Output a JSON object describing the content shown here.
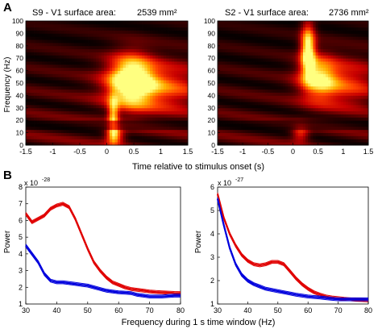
{
  "panel_labels": [
    "A",
    "B"
  ],
  "chart_data": [
    {
      "type": "heatmap",
      "title": "S9 - V1 surface area:",
      "area_value": "2539 mm²",
      "ylabel": "Frequency (Hz)",
      "xlabel": "",
      "xlim": [
        -1.5,
        1.5
      ],
      "ylim": [
        0,
        100
      ],
      "xticks": [
        "-1.5",
        "-1",
        "-0.5",
        "0",
        "0.5",
        "1",
        "1.5"
      ],
      "yticks": [
        "0",
        "10",
        "20",
        "30",
        "40",
        "50",
        "60",
        "70",
        "80",
        "90",
        "100"
      ],
      "colormap": [
        "#000000",
        "#5a0000",
        "#c80000",
        "#ff4000",
        "#ffb000",
        "#ffff80"
      ],
      "hotspots": [
        {
          "t": 0.45,
          "f": 53,
          "st": 0.28,
          "sf": 14,
          "amp": 1.0
        },
        {
          "t": 0.9,
          "f": 47,
          "st": 0.6,
          "sf": 14,
          "amp": 0.55
        },
        {
          "t": 0.12,
          "f": 22,
          "st": 0.07,
          "sf": 12,
          "amp": 0.7
        },
        {
          "t": 0.15,
          "f": 8,
          "st": 0.12,
          "sf": 5,
          "amp": 0.6
        }
      ],
      "baseline": 0.3
    },
    {
      "type": "heatmap",
      "title": "S2 - V1 surface area:",
      "area_value": "2736 mm²",
      "ylabel": "",
      "xlabel": "",
      "xlim": [
        -1.5,
        1.5
      ],
      "ylim": [
        0,
        100
      ],
      "xticks": [
        "-1.5",
        "-1",
        "-0.5",
        "0",
        "0.5",
        "1",
        "1.5"
      ],
      "yticks": [
        "0",
        "10",
        "20",
        "30",
        "40",
        "50",
        "60",
        "70",
        "80",
        "90",
        "100"
      ],
      "colormap": [
        "#000000",
        "#5a0000",
        "#c80000",
        "#ff4000",
        "#ffb000",
        "#ffff80"
      ],
      "hotspots": [
        {
          "t": 0.3,
          "f": 78,
          "st": 0.1,
          "sf": 14,
          "amp": 1.0
        },
        {
          "t": 0.5,
          "f": 55,
          "st": 0.25,
          "sf": 12,
          "amp": 0.7
        },
        {
          "t": 1.0,
          "f": 50,
          "st": 0.5,
          "sf": 14,
          "amp": 0.45
        },
        {
          "t": 0.15,
          "f": 10,
          "st": 0.12,
          "sf": 5,
          "amp": 0.45
        }
      ],
      "baseline": 0.28
    },
    {
      "type": "line",
      "title": "",
      "xlabel": "",
      "ylabel": "Power",
      "exponent_label": "x 10",
      "exponent": "-28",
      "xlim": [
        30,
        80
      ],
      "ylim": [
        1,
        8
      ],
      "xticks": [
        "30",
        "40",
        "50",
        "60",
        "70",
        "80"
      ],
      "yticks": [
        "1",
        "2",
        "3",
        "4",
        "5",
        "6",
        "7",
        "8"
      ],
      "series": [
        {
          "color": "#e00000",
          "x": [
            30,
            32,
            34,
            36,
            38,
            40,
            42,
            44,
            46,
            48,
            50,
            52,
            54,
            56,
            58,
            60,
            62,
            64,
            66,
            68,
            70,
            72,
            74,
            76,
            78,
            80
          ],
          "y": [
            6.4,
            5.9,
            6.1,
            6.3,
            6.7,
            6.9,
            7.0,
            6.8,
            6.1,
            5.2,
            4.3,
            3.5,
            3.0,
            2.6,
            2.3,
            2.15,
            2.0,
            1.9,
            1.85,
            1.8,
            1.75,
            1.72,
            1.7,
            1.68,
            1.66,
            1.65
          ]
        },
        {
          "color": "#0000dd",
          "x": [
            30,
            32,
            34,
            36,
            38,
            40,
            42,
            44,
            46,
            48,
            50,
            52,
            54,
            56,
            58,
            60,
            62,
            64,
            66,
            68,
            70,
            72,
            74,
            76,
            78,
            80
          ],
          "y": [
            4.5,
            4.0,
            3.5,
            2.8,
            2.4,
            2.3,
            2.3,
            2.25,
            2.2,
            2.15,
            2.1,
            2.0,
            1.9,
            1.8,
            1.75,
            1.7,
            1.68,
            1.65,
            1.55,
            1.5,
            1.45,
            1.45,
            1.45,
            1.48,
            1.5,
            1.5
          ]
        }
      ]
    },
    {
      "type": "line",
      "title": "",
      "xlabel": "",
      "ylabel": "Power",
      "exponent_label": "x 10",
      "exponent": "-27",
      "xlim": [
        30,
        80
      ],
      "ylim": [
        1,
        6
      ],
      "xticks": [
        "30",
        "40",
        "50",
        "60",
        "70",
        "80"
      ],
      "yticks": [
        "1",
        "2",
        "3",
        "4",
        "5",
        "6"
      ],
      "series": [
        {
          "color": "#e00000",
          "x": [
            30,
            32,
            34,
            36,
            38,
            40,
            42,
            44,
            46,
            48,
            50,
            52,
            54,
            56,
            58,
            60,
            62,
            64,
            66,
            68,
            70,
            72,
            74,
            76,
            78,
            80
          ],
          "y": [
            5.7,
            4.7,
            4.0,
            3.5,
            3.1,
            2.85,
            2.7,
            2.65,
            2.7,
            2.8,
            2.8,
            2.7,
            2.4,
            2.1,
            1.85,
            1.65,
            1.5,
            1.4,
            1.32,
            1.28,
            1.25,
            1.22,
            1.2,
            1.18,
            1.17,
            1.15
          ]
        },
        {
          "color": "#0000dd",
          "x": [
            30,
            32,
            34,
            36,
            38,
            40,
            42,
            44,
            46,
            48,
            50,
            52,
            54,
            56,
            58,
            60,
            62,
            64,
            66,
            68,
            70,
            72,
            74,
            76,
            78,
            80
          ],
          "y": [
            5.5,
            4.4,
            3.4,
            2.7,
            2.25,
            2.0,
            1.85,
            1.75,
            1.65,
            1.6,
            1.55,
            1.5,
            1.45,
            1.4,
            1.36,
            1.32,
            1.3,
            1.28,
            1.25,
            1.22,
            1.2,
            1.2,
            1.2,
            1.2,
            1.2,
            1.2
          ]
        }
      ]
    }
  ],
  "shared": {
    "top_xlabel": "Time relative to stimulus onset (s)",
    "bottom_xlabel": "Frequency during 1 s time window (Hz)"
  }
}
